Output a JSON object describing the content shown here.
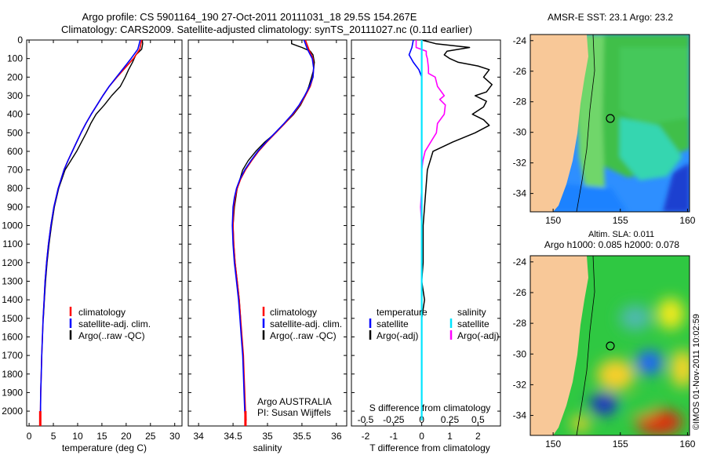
{
  "figure": {
    "title_line1": "Argo profile: CS 5901164_190 27-Oct-2011 20111031_18 29.5S 154.267E",
    "title_line2": "Climatology: CARS2009. Satellite-adjusted climatology: synTS_20111027.nc (0.11d earlier)",
    "timestamp": "©IMOS 01-Nov-2011 10:02:59",
    "colors": {
      "climatology": "#ff0000",
      "satellite": "#0000ff",
      "argo": "#000000",
      "salinity_satellite": "#00e5ff",
      "salinity_argo": "#ff00ff",
      "land": "#f8c898"
    }
  },
  "panel_temp": {
    "xlabel": "temperature (deg C)",
    "xticks": [
      "0",
      "5",
      "10",
      "15",
      "20",
      "25",
      "30"
    ],
    "legend": [
      "climatology",
      "satellite-adj. clim.",
      "Argo(..raw -QC)"
    ]
  },
  "panel_sal": {
    "xlabel": "salinity",
    "xticks": [
      "34",
      "34.5",
      "35",
      "35.5",
      "36"
    ],
    "legend": [
      "climatology",
      "satellite-adj. clim.",
      "Argo(..raw -QC)"
    ],
    "note1": "Argo AUSTRALIA",
    "note2": "PI: Susan Wijffels"
  },
  "panel_diff": {
    "legend_temp_title": "temperature",
    "legend_sal_title": "salinity",
    "legend_temp": [
      "satellite",
      "Argo(-adj)"
    ],
    "legend_sal": [
      "satellite",
      "Argo(-adj)"
    ],
    "s_label": "S difference from climatology",
    "s_ticks": [
      "-0.5",
      "-0.25",
      "0",
      "0.25",
      "0.5"
    ],
    "t_label": "T difference from climatology",
    "t_ticks": [
      "-2",
      "-1",
      "0",
      "1",
      "2"
    ]
  },
  "yaxis": {
    "ticks": [
      "0",
      "100",
      "200",
      "300",
      "400",
      "500",
      "600",
      "700",
      "800",
      "900",
      "1000",
      "1100",
      "1200",
      "1300",
      "1400",
      "1500",
      "1600",
      "1700",
      "1800",
      "1900",
      "2000"
    ]
  },
  "map_sst": {
    "title": "AMSR-E SST: 23.1  Argo: 23.2",
    "lat_ticks": [
      "-24",
      "-26",
      "-28",
      "-30",
      "-32",
      "-34"
    ],
    "lon_ticks": [
      "150",
      "155",
      "160"
    ]
  },
  "map_sla": {
    "title1": "Altim. SLA: 0.011",
    "title2": "Argo h1000: 0.085 h2000: 0.078",
    "lat_ticks": [
      "-24",
      "-26",
      "-28",
      "-30",
      "-32",
      "-34"
    ],
    "lon_ticks": [
      "150",
      "155",
      "160"
    ]
  },
  "chart_data": [
    {
      "type": "line",
      "panel": "temperature",
      "xlabel": "temperature (deg C)",
      "ylabel": "",
      "xlim": [
        -0.5,
        31.5
      ],
      "ylim": [
        2080,
        0
      ],
      "series": [
        {
          "name": "climatology",
          "y": [
            0,
            50,
            100,
            150,
            200,
            250,
            300,
            350,
            400,
            450,
            500,
            550,
            600,
            650,
            700,
            800,
            900,
            1000,
            1100,
            1200,
            1300,
            1400,
            1500,
            1600,
            1700,
            1800,
            1900,
            2000,
            2050
          ],
          "x": [
            23.2,
            22.8,
            21.5,
            19.8,
            18.1,
            16.5,
            15.2,
            14.0,
            12.8,
            11.7,
            10.7,
            9.8,
            8.9,
            8.0,
            7.2,
            6.0,
            5.1,
            4.5,
            4.0,
            3.6,
            3.3,
            3.1,
            2.9,
            2.75,
            2.6,
            2.5,
            2.4,
            2.35,
            2.3
          ]
        },
        {
          "name": "satellite-adj. clim.",
          "y": [
            0,
            50,
            100,
            150,
            200,
            250,
            300,
            350,
            400,
            450,
            500,
            550,
            600,
            650,
            700,
            800,
            900,
            1000,
            1100,
            1200,
            1300,
            1400,
            1500,
            1600,
            1700,
            1800,
            1900,
            2000,
            2050
          ],
          "x": [
            22.9,
            22.4,
            21.0,
            19.5,
            18.0,
            16.5,
            15.2,
            14.0,
            12.8,
            11.7,
            10.7,
            9.8,
            8.9,
            8.0,
            7.2,
            6.0,
            5.1,
            4.5,
            4.0,
            3.6,
            3.3,
            3.1,
            2.9,
            2.75,
            2.6,
            2.5,
            2.4,
            2.35,
            2.3
          ]
        },
        {
          "name": "Argo(..raw -QC)",
          "y": [
            0,
            20,
            50,
            80,
            120,
            160,
            200,
            250,
            300,
            350,
            400,
            450,
            500,
            550,
            600,
            650,
            700,
            800,
            900,
            1000,
            1100,
            1200,
            1300,
            1400,
            1500
          ],
          "x": [
            23.3,
            23.4,
            23.2,
            22.0,
            21.3,
            20.5,
            19.8,
            18.8,
            17.0,
            15.5,
            13.8,
            12.7,
            11.8,
            10.8,
            9.8,
            8.6,
            7.4,
            6.1,
            5.2,
            4.6,
            4.1,
            3.7,
            3.4,
            3.15,
            2.95
          ]
        }
      ]
    },
    {
      "type": "line",
      "panel": "salinity",
      "xlabel": "salinity",
      "ylabel": "",
      "xlim": [
        33.85,
        36.15
      ],
      "ylim": [
        2080,
        0
      ],
      "series": [
        {
          "name": "climatology",
          "y": [
            0,
            50,
            100,
            150,
            200,
            250,
            300,
            350,
            400,
            450,
            500,
            550,
            600,
            650,
            700,
            750,
            800,
            850,
            900,
            1000,
            1100,
            1200,
            1300,
            1400,
            1500,
            1600,
            1700,
            1800,
            1900,
            2000,
            2050
          ],
          "x": [
            35.55,
            35.6,
            35.66,
            35.67,
            35.66,
            35.62,
            35.55,
            35.47,
            35.37,
            35.25,
            35.12,
            34.99,
            34.87,
            34.77,
            34.68,
            34.61,
            34.56,
            34.53,
            34.51,
            34.5,
            34.51,
            34.53,
            34.56,
            34.59,
            34.61,
            34.63,
            34.65,
            34.66,
            34.67,
            34.68,
            34.69
          ]
        },
        {
          "name": "satellite-adj. clim.",
          "y": [
            0,
            50,
            100,
            150,
            200,
            250,
            300,
            350,
            400,
            450,
            500,
            550,
            600,
            650,
            700,
            750,
            800,
            850,
            900,
            1000,
            1100,
            1200,
            1300,
            1400,
            1500,
            1600,
            1700,
            1800,
            1900,
            2000,
            2050
          ],
          "x": [
            35.53,
            35.58,
            35.65,
            35.67,
            35.66,
            35.61,
            35.54,
            35.46,
            35.36,
            35.24,
            35.11,
            34.98,
            34.86,
            34.76,
            34.67,
            34.6,
            34.55,
            34.52,
            34.5,
            34.49,
            34.5,
            34.52,
            34.55,
            34.58,
            34.6,
            34.62,
            34.64,
            34.65,
            34.66,
            34.67,
            34.68
          ]
        },
        {
          "name": "Argo(..raw -QC)",
          "y": [
            0,
            20,
            40,
            60,
            80,
            120,
            160,
            200,
            250,
            300,
            350,
            400,
            450,
            500,
            550,
            600,
            650,
            700,
            800,
            900,
            1000,
            1100,
            1200,
            1300,
            1400,
            1500
          ],
          "x": [
            35.35,
            35.35,
            35.5,
            35.62,
            35.66,
            35.68,
            35.67,
            35.64,
            35.6,
            35.55,
            35.48,
            35.38,
            35.25,
            35.12,
            34.96,
            34.83,
            34.72,
            34.64,
            34.56,
            34.52,
            34.5,
            34.51,
            34.53,
            34.56,
            34.59,
            34.61
          ]
        }
      ]
    },
    {
      "type": "line",
      "panel": "difference",
      "xlabel": "T difference from climatology",
      "x2label": "S difference from climatology",
      "ylabel": "",
      "xlim": [
        -2.5,
        2.8
      ],
      "x2lim": [
        -0.625,
        0.7
      ],
      "ylim": [
        2080,
        0
      ],
      "series": [
        {
          "name": "satellite",
          "quantity": "temperature",
          "y": [
            0,
            40,
            80,
            120,
            160,
            200,
            300,
            400,
            600,
            800,
            1000,
            1500,
            2050
          ],
          "x": [
            -0.3,
            -0.35,
            -0.45,
            -0.3,
            -0.1,
            0.0,
            0.0,
            0.0,
            0.0,
            0.0,
            0.0,
            0.0,
            0.0
          ]
        },
        {
          "name": "Argo(-adj)",
          "quantity": "temperature",
          "y": [
            0,
            20,
            40,
            60,
            80,
            100,
            120,
            140,
            160,
            200,
            240,
            280,
            300,
            330,
            360,
            400,
            430,
            460,
            500,
            550,
            600,
            700,
            800,
            900,
            1000,
            1100,
            1200,
            1300,
            1400,
            1500
          ],
          "x": [
            0.0,
            0.5,
            1.7,
            0.9,
            0.8,
            1.0,
            1.3,
            2.0,
            2.4,
            2.2,
            2.5,
            2.3,
            1.9,
            2.3,
            2.2,
            1.8,
            2.2,
            2.4,
            1.9,
            1.1,
            0.4,
            0.2,
            0.15,
            0.1,
            0.05,
            0.05,
            0.05,
            0.0,
            0.1,
            0.0
          ]
        },
        {
          "name": "satellite",
          "quantity": "salinity",
          "y": [
            0,
            100,
            500,
            1000,
            1500,
            2050
          ],
          "x": [
            0.0,
            0.0,
            0.0,
            0.0,
            0.0,
            0.0
          ]
        },
        {
          "name": "Argo(-adj)",
          "quantity": "salinity",
          "y": [
            0,
            40,
            60,
            80,
            100,
            150,
            180,
            200,
            250,
            300,
            320,
            350,
            400,
            450,
            500,
            550,
            600,
            650,
            700,
            800,
            900,
            1000
          ],
          "x": [
            -0.05,
            -0.05,
            0.04,
            0.04,
            0.05,
            0.06,
            0.06,
            0.12,
            0.14,
            0.2,
            0.16,
            0.21,
            0.2,
            0.14,
            0.13,
            0.08,
            0.03,
            0.01,
            0.0,
            0.0,
            -0.01,
            0.0
          ]
        }
      ]
    }
  ]
}
